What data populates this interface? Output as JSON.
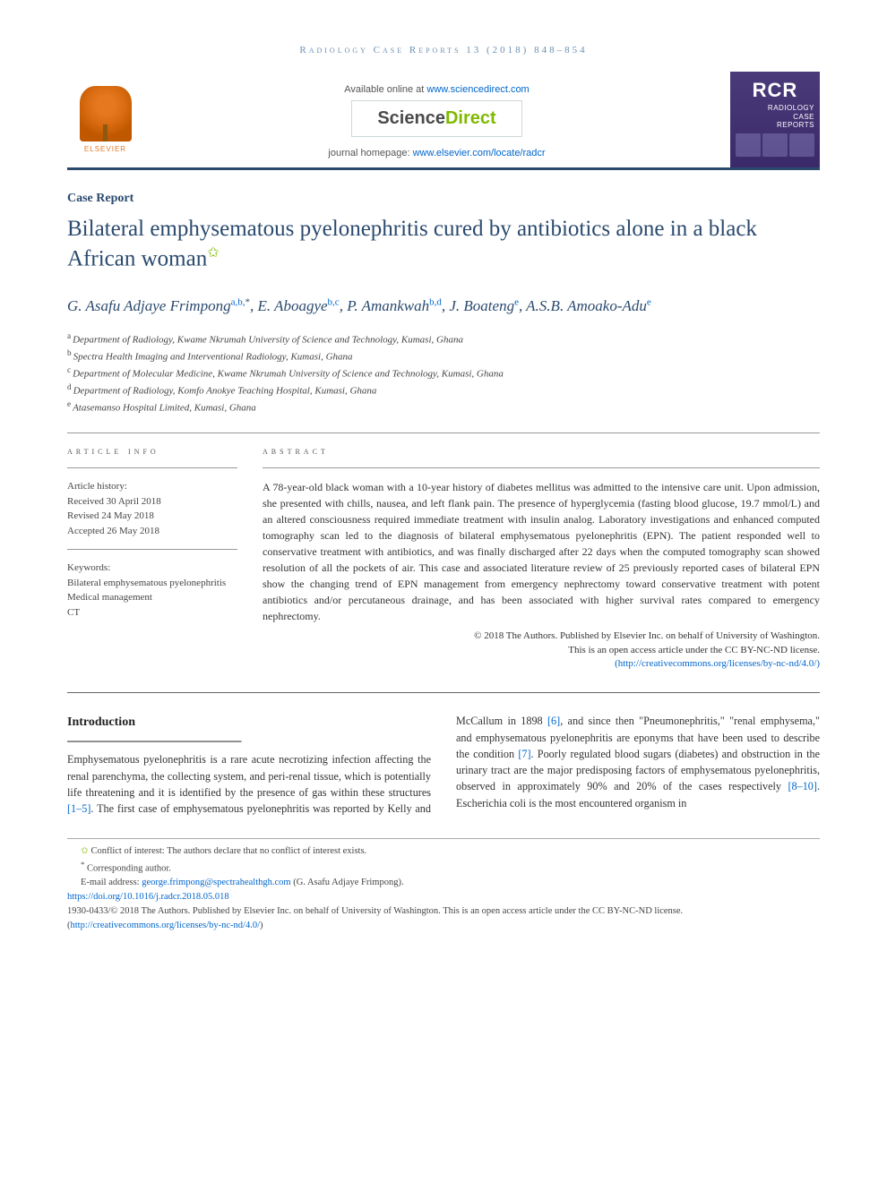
{
  "journalRef": "Radiology Case Reports 13 (2018) 848–854",
  "banner": {
    "elsevier": "ELSEVIER",
    "availPrefix": "Available online at ",
    "availLink": "www.sciencedirect.com",
    "sdPart1": "Science",
    "sdPart2": "Direct",
    "homepagePrefix": "journal homepage: ",
    "homepageLink": "www.elsevier.com/locate/radcr",
    "rcrAbbrev": "RCR",
    "rcrLine1": "RADIOLOGY",
    "rcrLine2": "CASE",
    "rcrLine3": "REPORTS"
  },
  "articleType": "Case Report",
  "title": "Bilateral emphysematous pyelonephritis cured by antibiotics alone in a black African woman",
  "authors": [
    {
      "name": "G. Asafu Adjaye Frimpong",
      "aff": "a,b,",
      "corr": "*"
    },
    {
      "name": "E. Aboagye",
      "aff": "b,c",
      "corr": ""
    },
    {
      "name": "P. Amankwah",
      "aff": "b,d",
      "corr": ""
    },
    {
      "name": "J. Boateng",
      "aff": "e",
      "corr": ""
    },
    {
      "name": "A.S.B. Amoako-Adu",
      "aff": "e",
      "corr": ""
    }
  ],
  "affiliations": [
    {
      "s": "a",
      "t": "Department of Radiology, Kwame Nkrumah University of Science and Technology, Kumasi, Ghana"
    },
    {
      "s": "b",
      "t": "Spectra Health Imaging and Interventional Radiology, Kumasi, Ghana"
    },
    {
      "s": "c",
      "t": "Department of Molecular Medicine, Kwame Nkrumah University of Science and Technology, Kumasi, Ghana"
    },
    {
      "s": "d",
      "t": "Department of Radiology, Komfo Anokye Teaching Hospital, Kumasi, Ghana"
    },
    {
      "s": "e",
      "t": "Atasemanso Hospital Limited, Kumasi, Ghana"
    }
  ],
  "info": {
    "heading": "article info",
    "historyLabel": "Article history:",
    "received": "Received 30 April 2018",
    "revised": "Revised 24 May 2018",
    "accepted": "Accepted 26 May 2018",
    "keywordsLabel": "Keywords:",
    "k1": "Bilateral emphysematous pyelonephritis",
    "k2": "Medical management",
    "k3": "CT"
  },
  "abstract": {
    "heading": "abstract",
    "text": "A 78-year-old black woman with a 10-year history of diabetes mellitus was admitted to the intensive care unit. Upon admission, she presented with chills, nausea, and left flank pain. The presence of hyperglycemia (fasting blood glucose, 19.7 mmol/L) and an altered consciousness required immediate treatment with insulin analog. Laboratory investigations and enhanced computed tomography scan led to the diagnosis of bilateral emphysematous pyelonephritis (EPN). The patient responded well to conservative treatment with antibiotics, and was finally discharged after 22 days when the computed tomography scan showed resolution of all the pockets of air. This case and associated literature review of 25 previously reported cases of bilateral EPN show the changing trend of EPN management from emergency nephrectomy toward conservative treatment with potent antibiotics and/or percutaneous drainage, and has been associated with higher survival rates compared to emergency nephrectomy.",
    "copy1": "© 2018 The Authors. Published by Elsevier Inc. on behalf of University of Washington.",
    "copy2": "This is an open access article under the CC BY-NC-ND license.",
    "copyLink": "(http://creativecommons.org/licenses/by-nc-nd/4.0/)"
  },
  "intro": {
    "heading": "Introduction",
    "p1a": "Emphysematous pyelonephritis is a rare acute necrotizing infection affecting the renal parenchyma, the collecting system, and peri-renal tissue, which is potentially life threatening and it is identified by the presence of gas within these structures ",
    "r1": "[1–5]",
    "p1b": ". The first case of emphysematous pyelonephritis ",
    "p2a": "was reported by Kelly and McCallum in 1898 ",
    "r2": "[6]",
    "p2b": ", and since then \"Pneumonephritis,\" \"renal emphysema,\" and emphysematous pyelonephritis are eponyms that have been used to describe the condition ",
    "r3": "[7]",
    "p2c": ". Poorly regulated blood sugars (diabetes) and obstruction in the urinary tract are the major predisposing factors of emphysematous pyelonephritis, observed in approximately 90% and 20% of the cases respectively ",
    "r4": "[8–10]",
    "p2d": ". Escherichia coli is the most encountered organism in"
  },
  "footnotes": {
    "coi": "Conflict of interest: The authors declare that no conflict of interest exists.",
    "corrLabel": "Corresponding author.",
    "emailLabel": "E-mail address: ",
    "email": "george.frimpong@spectrahealthgh.com",
    "emailSuffix": " (G. Asafu Adjaye Frimpong).",
    "doi": "https://doi.org/10.1016/j.radcr.2018.05.018",
    "issn": "1930-0433/© 2018 The Authors. Published by Elsevier Inc. on behalf of University of Washington. This is an open access article under the CC BY-NC-ND license. (",
    "ccLink": "http://creativecommons.org/licenses/by-nc-nd/4.0/",
    "issnEnd": ")"
  },
  "colors": {
    "brandBlue": "#2a4a6e",
    "linkBlue": "#0066cc",
    "elsevierOrange": "#e67820",
    "sdGreen": "#7fba00",
    "rcrPurple": "#4a3a7a",
    "textGray": "#444444"
  }
}
